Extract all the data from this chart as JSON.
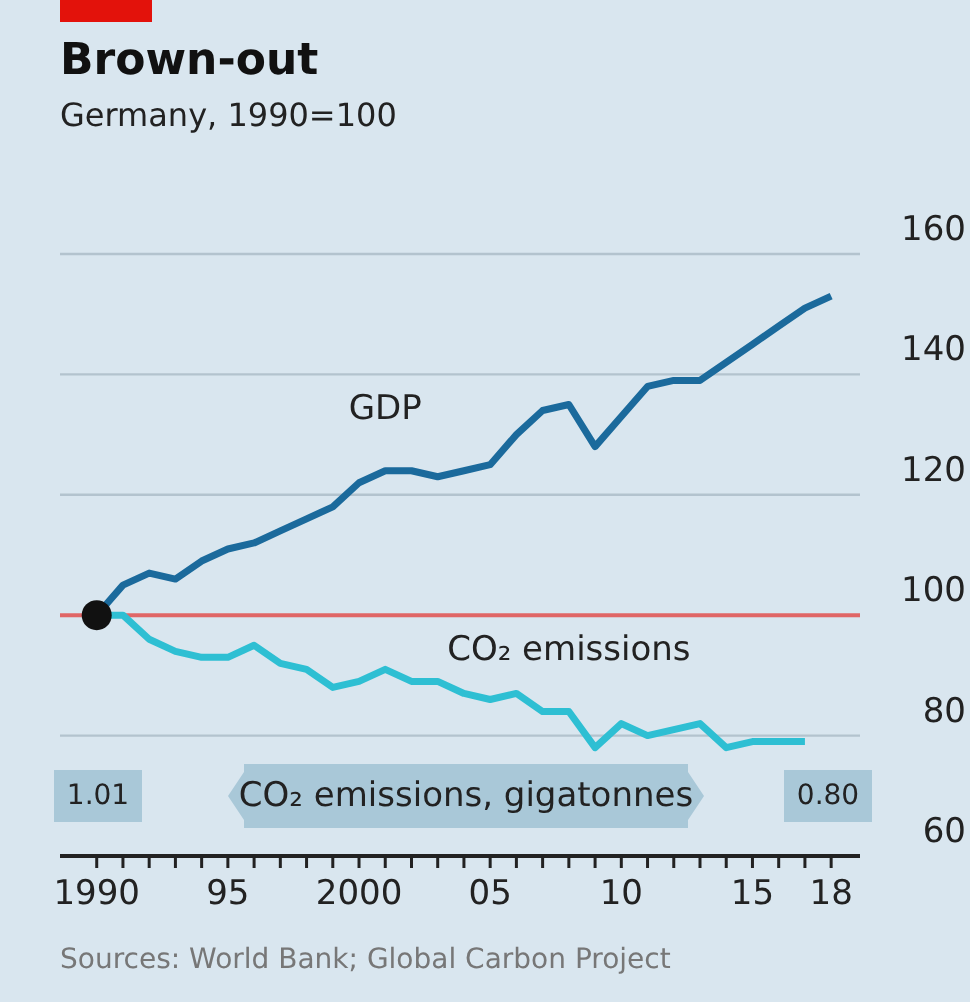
{
  "chart_data": {
    "type": "line",
    "title": "Brown-out",
    "subtitle": "Germany, 1990=100",
    "x": [
      1990,
      1991,
      1992,
      1993,
      1994,
      1995,
      1996,
      1997,
      1998,
      1999,
      2000,
      2001,
      2002,
      2003,
      2004,
      2005,
      2006,
      2007,
      2008,
      2009,
      2010,
      2011,
      2012,
      2013,
      2014,
      2015,
      2016,
      2017,
      2018
    ],
    "series": [
      {
        "name": "GDP",
        "color": "#1b6a9c",
        "values": [
          100,
          105,
          107,
          106,
          109,
          111,
          112,
          114,
          116,
          118,
          122,
          124,
          124,
          123,
          124,
          125,
          130,
          134,
          135,
          128,
          133,
          138,
          139,
          139,
          142,
          145,
          148,
          151,
          153
        ]
      },
      {
        "name": "CO₂ emissions",
        "color": "#2ebfd3",
        "values": [
          100,
          100,
          96,
          94,
          93,
          93,
          95,
          92,
          91,
          88,
          89,
          91,
          89,
          89,
          87,
          86,
          87,
          84,
          84,
          78,
          82,
          80,
          81,
          82,
          78,
          79,
          79,
          79,
          null
        ]
      },
      {
        "type": "scatter",
        "color": "#111111",
        "x": [
          1990
        ],
        "values": [
          100
        ]
      }
    ],
    "xlim": [
      1988.6,
      2019.1
    ],
    "xticks": [
      {
        "value": 1990,
        "label": "1990"
      },
      {
        "value": 1991,
        "label": null
      },
      {
        "value": 1992,
        "label": null
      },
      {
        "value": 1993,
        "label": null
      },
      {
        "value": 1994,
        "label": null
      },
      {
        "value": 1995,
        "label": "95"
      },
      {
        "value": 1996,
        "label": null
      },
      {
        "value": 1997,
        "label": null
      },
      {
        "value": 1998,
        "label": null
      },
      {
        "value": 1999,
        "label": null
      },
      {
        "value": 2000,
        "label": "2000"
      },
      {
        "value": 2001,
        "label": null
      },
      {
        "value": 2002,
        "label": null
      },
      {
        "value": 2003,
        "label": null
      },
      {
        "value": 2004,
        "label": null
      },
      {
        "value": 2005,
        "label": "05"
      },
      {
        "value": 2006,
        "label": null
      },
      {
        "value": 2007,
        "label": null
      },
      {
        "value": 2008,
        "label": null
      },
      {
        "value": 2009,
        "label": null
      },
      {
        "value": 2010,
        "label": "10"
      },
      {
        "value": 2011,
        "label": null
      },
      {
        "value": 2012,
        "label": null
      },
      {
        "value": 2013,
        "label": null
      },
      {
        "value": 2014,
        "label": null
      },
      {
        "value": 2015,
        "label": "15"
      },
      {
        "value": 2016,
        "label": null
      },
      {
        "value": 2017,
        "label": null
      },
      {
        "value": 2018,
        "label": "18"
      }
    ],
    "ylim": [
      60,
      160
    ],
    "yticks": [
      60,
      80,
      100,
      120,
      140,
      160
    ],
    "grid": "y",
    "ref_lines": [
      {
        "axis": "y",
        "value": 100,
        "color": "#e06666"
      }
    ],
    "annotations": [
      "1.01",
      "CO₂ emissions, gigatonnes",
      "0.80",
      "Sources: World Bank; Global Carbon Project"
    ]
  }
}
